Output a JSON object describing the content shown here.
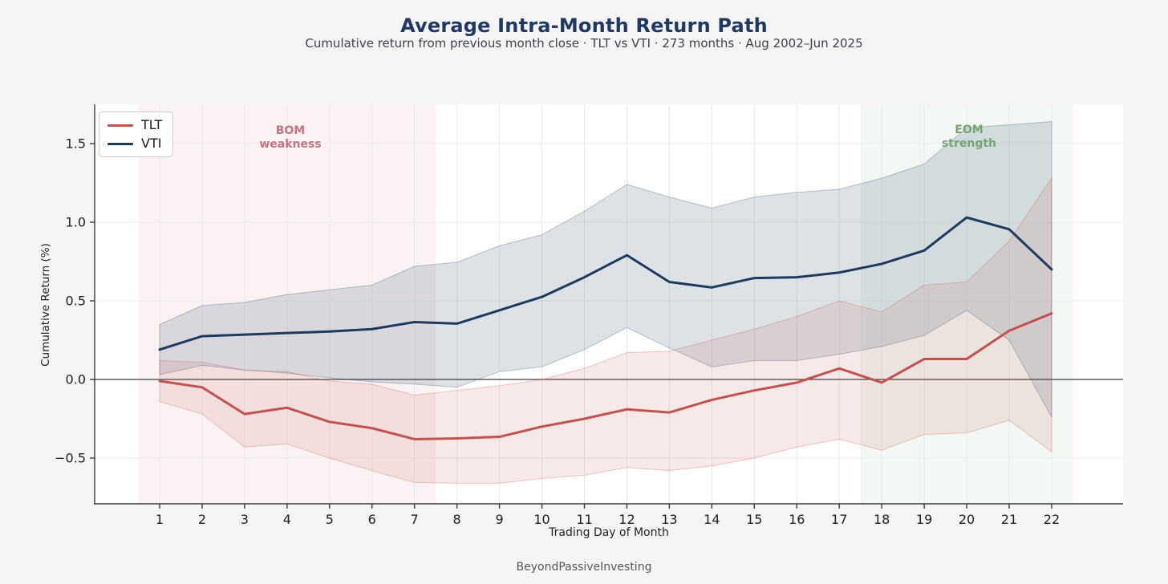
{
  "header": {
    "title": "Average Intra-Month Return Path",
    "subtitle": "Cumulative return from previous month close  ·  TLT vs VTI  ·  273 months  ·  Aug 2002–Jun 2025"
  },
  "legend": {
    "items": [
      {
        "label": "TLT",
        "color": "#c3524f"
      },
      {
        "label": "VTI",
        "color": "#1e3a5e"
      }
    ]
  },
  "annotations": {
    "bom": {
      "text": "BOM\nweakness",
      "color": "#c5737f"
    },
    "eom": {
      "text": "EOM\nstrength",
      "color": "#74a572"
    }
  },
  "footer": {
    "credit": "BeyondPassiveInvesting"
  },
  "chart_data": {
    "type": "line",
    "title": "Average Intra-Month Return Path",
    "xlabel": "Trading Day of Month",
    "ylabel": "Cumulative Return (%)",
    "x": [
      1,
      2,
      3,
      4,
      5,
      6,
      7,
      8,
      9,
      10,
      11,
      12,
      13,
      14,
      15,
      16,
      17,
      18,
      19,
      20,
      21,
      22
    ],
    "x_ticks": [
      1,
      2,
      3,
      4,
      5,
      6,
      7,
      8,
      9,
      10,
      11,
      12,
      13,
      14,
      15,
      16,
      17,
      18,
      19,
      20,
      21,
      22
    ],
    "y_ticks": [
      -0.5,
      0.0,
      0.5,
      1.0,
      1.5
    ],
    "ylim": [
      -0.79,
      1.75
    ],
    "xlim": [
      -0.53,
      23.68
    ],
    "grid": true,
    "zero_line": true,
    "legend_position": "upper left",
    "series": [
      {
        "name": "TLT",
        "color": "#c3524f",
        "band_fill": "rgba(195,82,79,0.13)",
        "band_edge": "rgba(195,82,79,0.30)",
        "values": [
          -0.01,
          -0.05,
          -0.22,
          -0.18,
          -0.27,
          -0.31,
          -0.38,
          -0.375,
          -0.365,
          -0.3,
          -0.25,
          -0.19,
          -0.21,
          -0.13,
          -0.07,
          -0.02,
          0.07,
          -0.02,
          0.13,
          0.13,
          0.31,
          0.42
        ],
        "band_upper": [
          0.12,
          0.11,
          0.06,
          0.05,
          -0.01,
          -0.03,
          -0.1,
          -0.07,
          -0.04,
          0.0,
          0.07,
          0.17,
          0.18,
          0.25,
          0.32,
          0.4,
          0.5,
          0.43,
          0.6,
          0.62,
          0.88,
          1.28
        ],
        "band_lower": [
          -0.14,
          -0.22,
          -0.43,
          -0.41,
          -0.5,
          -0.58,
          -0.655,
          -0.66,
          -0.66,
          -0.63,
          -0.61,
          -0.56,
          -0.58,
          -0.55,
          -0.5,
          -0.43,
          -0.38,
          -0.45,
          -0.35,
          -0.34,
          -0.26,
          -0.46
        ]
      },
      {
        "name": "VTI",
        "color": "#1e3a5e",
        "band_fill": "rgba(30,58,94,0.15)",
        "band_edge": "rgba(30,58,94,0.28)",
        "values": [
          0.19,
          0.275,
          0.285,
          0.295,
          0.305,
          0.32,
          0.365,
          0.355,
          0.44,
          0.525,
          0.65,
          0.79,
          0.62,
          0.585,
          0.645,
          0.65,
          0.68,
          0.735,
          0.82,
          1.03,
          0.955,
          0.7
        ],
        "band_upper": [
          0.35,
          0.47,
          0.49,
          0.54,
          0.57,
          0.6,
          0.72,
          0.745,
          0.85,
          0.92,
          1.07,
          1.24,
          1.16,
          1.09,
          1.16,
          1.19,
          1.21,
          1.28,
          1.37,
          1.6,
          1.62,
          1.64
        ],
        "band_lower": [
          0.03,
          0.09,
          0.06,
          0.04,
          0.01,
          -0.015,
          -0.03,
          -0.05,
          0.05,
          0.08,
          0.19,
          0.33,
          0.2,
          0.08,
          0.12,
          0.12,
          0.16,
          0.21,
          0.28,
          0.44,
          0.25,
          -0.24
        ]
      }
    ],
    "shaded_regions": [
      {
        "label": "BOM weakness",
        "from_day": 0.5,
        "to_day": 7.5,
        "color": "rgba(200,100,100,0.08)"
      },
      {
        "label": "EOM strength",
        "from_day": 17.5,
        "to_day": 22.5,
        "color": "rgba(110,160,110,0.08)"
      }
    ]
  }
}
